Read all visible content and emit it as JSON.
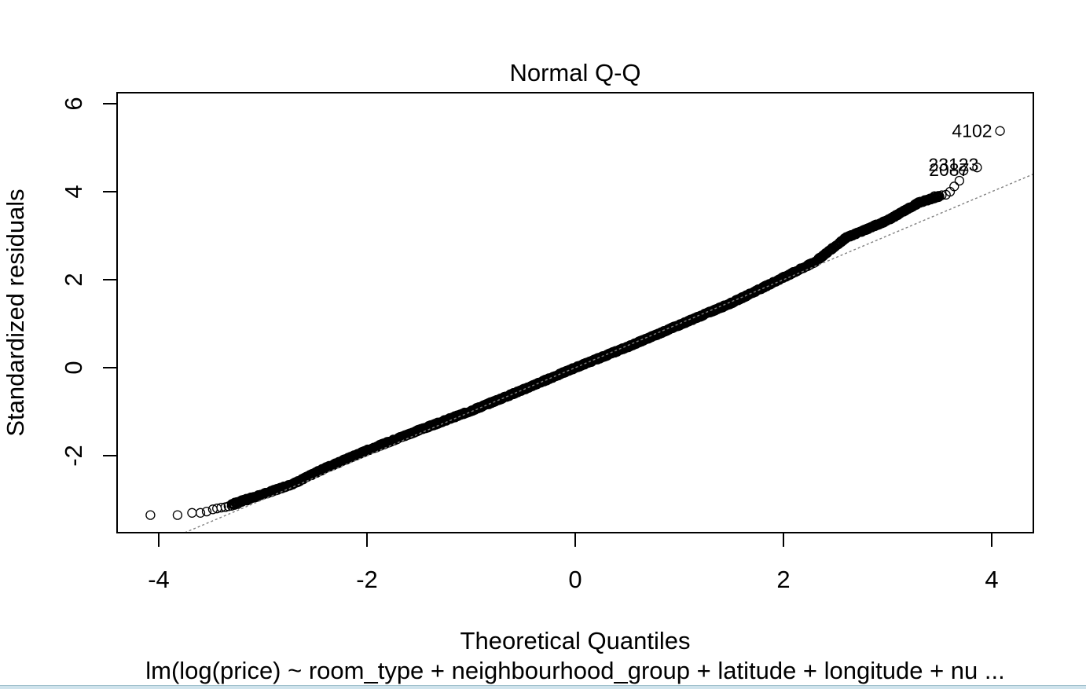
{
  "chart_data": {
    "type": "scatter",
    "title": "Normal Q-Q",
    "xlabel": "Theoretical Quantiles",
    "ylabel": "Standardized residuals",
    "subtitle": "lm(log(price) ~ room_type + neighbourhood_group + latitude + longitude + nu ...",
    "xlim": [
      -4.4,
      4.4
    ],
    "ylim": [
      -3.75,
      6.25
    ],
    "x_ticks": [
      -4,
      -2,
      0,
      2,
      4
    ],
    "y_ticks": [
      -2,
      0,
      2,
      4,
      6
    ],
    "x_tick_labels": [
      "-4",
      "-2",
      "0",
      "2",
      "4"
    ],
    "y_tick_labels": [
      "-2",
      "0",
      "2",
      "4",
      "6"
    ],
    "reference_line": {
      "slope": 1.0,
      "intercept": 0.0,
      "style": "dotted"
    },
    "body_curve": [
      [
        -3.3,
        -3.1
      ],
      [
        -3.0,
        -2.88
      ],
      [
        -2.7,
        -2.63
      ],
      [
        -2.4,
        -2.28
      ],
      [
        -2.0,
        -1.88
      ],
      [
        -1.5,
        -1.42
      ],
      [
        -1.0,
        -0.98
      ],
      [
        -0.5,
        -0.5
      ],
      [
        0.0,
        0.0
      ],
      [
        0.5,
        0.47
      ],
      [
        1.0,
        0.97
      ],
      [
        1.5,
        1.47
      ],
      [
        2.0,
        2.05
      ],
      [
        2.3,
        2.4
      ],
      [
        2.6,
        2.95
      ],
      [
        3.0,
        3.35
      ],
      [
        3.3,
        3.75
      ],
      [
        3.5,
        3.9
      ]
    ],
    "body_points_count": 1600,
    "tail_points": [
      [
        -4.08,
        -3.35
      ],
      [
        -3.82,
        -3.35
      ],
      [
        -3.68,
        -3.3
      ],
      [
        -3.6,
        -3.3
      ],
      [
        -3.54,
        -3.27
      ],
      [
        -3.48,
        -3.22
      ],
      [
        -3.44,
        -3.2
      ],
      [
        -3.4,
        -3.18
      ],
      [
        -3.36,
        -3.17
      ],
      [
        -3.33,
        -3.15
      ],
      [
        -3.3,
        -3.14
      ],
      [
        -3.27,
        -3.12
      ],
      [
        -3.24,
        -3.1
      ],
      [
        -3.2,
        -3.05
      ],
      [
        -3.15,
        -3.02
      ],
      [
        3.45,
        3.9
      ],
      [
        3.48,
        3.88
      ],
      [
        3.52,
        3.92
      ],
      [
        3.56,
        3.93
      ],
      [
        3.6,
        4.0
      ],
      [
        3.64,
        4.12
      ],
      [
        3.69,
        4.25
      ],
      [
        3.73,
        4.48
      ],
      [
        3.86,
        4.55
      ],
      [
        4.08,
        5.38
      ]
    ],
    "labeled_points": [
      {
        "label": "4102",
        "x": 4.08,
        "y": 5.38
      },
      {
        "label": "2087",
        "x": 3.86,
        "y": 4.5
      },
      {
        "label": "23123",
        "x": 3.95,
        "y": 4.62
      }
    ]
  }
}
